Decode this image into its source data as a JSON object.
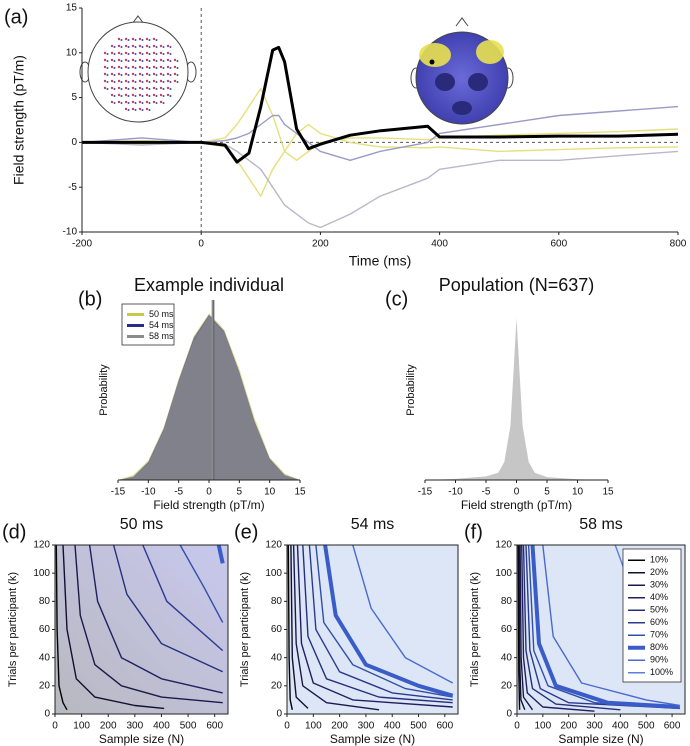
{
  "chart_data": [
    {
      "type": "line",
      "panel_label": "(a)",
      "xlabel": "Time (ms)",
      "ylabel": "Field strength (pT/m)",
      "x": [
        -200,
        -100,
        0,
        40,
        60,
        80,
        100,
        120,
        130,
        140,
        160,
        180,
        200,
        250,
        300,
        380,
        400,
        500,
        600,
        700,
        800
      ],
      "series": [
        {
          "color": "#e6e07a",
          "values": [
            0,
            0.2,
            0,
            0.5,
            2,
            4,
            6,
            3,
            1,
            -1,
            -2,
            -1,
            0,
            0.5,
            0.5,
            0.3,
            0.5,
            0.8,
            1,
            1.2,
            1.5
          ]
        },
        {
          "color": "#e6e07a",
          "values": [
            0,
            -0.2,
            0,
            -0.5,
            -2,
            -4,
            -6,
            -3,
            -2,
            -1,
            1,
            2,
            1,
            0,
            -0.5,
            -0.6,
            -0.5,
            -1,
            -0.8,
            -0.6,
            -0.5
          ]
        },
        {
          "color": "#9a9ac8",
          "values": [
            0,
            0.5,
            0,
            0.2,
            0.5,
            1,
            2,
            3,
            3,
            2,
            1,
            0,
            -1,
            -2,
            -1,
            0,
            1,
            2,
            3,
            3.5,
            4
          ]
        },
        {
          "color": "#b8b8cc",
          "values": [
            0,
            -0.3,
            0,
            -0.2,
            -1,
            -2,
            -3,
            -5,
            -6,
            -7,
            -8,
            -9,
            -9.5,
            -8,
            -6,
            -4,
            -3,
            -2,
            -2,
            -1.5,
            -1
          ]
        },
        {
          "color": "#000000",
          "width": 3,
          "values": [
            0,
            0,
            0,
            -0.3,
            -2.2,
            -1.2,
            4,
            10.3,
            10.6,
            9,
            1.5,
            -0.7,
            -0.2,
            0.8,
            1.3,
            1.8,
            0.6,
            0.6,
            0.7,
            0.7,
            0.9
          ]
        }
      ],
      "xlim": [
        -200,
        800
      ],
      "ylim": [
        -10,
        15
      ],
      "xticks": [
        -200,
        0,
        200,
        400,
        600,
        800
      ],
      "yticks": [
        -10,
        -5,
        0,
        5,
        10,
        15
      ]
    },
    {
      "type": "area",
      "panel_label": "(b)",
      "title": "Example individual",
      "xlabel": "Field strength (pT/m)",
      "ylabel": "Probability",
      "x": [
        -15,
        -12.5,
        -10,
        -7.5,
        -5,
        -2.5,
        0,
        2.5,
        5,
        7.5,
        10,
        12.5,
        15
      ],
      "series": [
        {
          "name": "50 ms",
          "color": "#c8c84a",
          "mean": 0.7,
          "values": [
            0,
            0.003,
            0.012,
            0.032,
            0.062,
            0.088,
            0.102,
            0.092,
            0.068,
            0.038,
            0.014,
            0.004,
            0
          ]
        },
        {
          "name": "54 ms",
          "color": "#2a2a8a",
          "mean": 0.7,
          "values": [
            0,
            0.002,
            0.011,
            0.031,
            0.061,
            0.087,
            0.101,
            0.091,
            0.066,
            0.036,
            0.013,
            0.003,
            0
          ]
        },
        {
          "name": "58 ms",
          "color": "#8c8c8c",
          "mean": 0.6,
          "values": [
            0,
            0.002,
            0.01,
            0.03,
            0.06,
            0.085,
            0.1,
            0.09,
            0.065,
            0.035,
            0.012,
            0.003,
            0
          ]
        }
      ],
      "legend": "upper left",
      "xlim": [
        -15,
        15
      ],
      "ylim": [
        0,
        0.11
      ],
      "xticks": [
        -15,
        -10,
        -5,
        0,
        5,
        10,
        15
      ]
    },
    {
      "type": "area",
      "panel_label": "(c)",
      "title": "Population (N=637)",
      "xlabel": "Field strength (pT/m)",
      "ylabel": "Probability",
      "x": [
        -15,
        -10,
        -5,
        -3,
        -2,
        -1,
        -0.5,
        0,
        0.5,
        1,
        2,
        3,
        5,
        10,
        15
      ],
      "series": [
        {
          "color": "#a0a0a0",
          "values": [
            0,
            0.003,
            0.01,
            0.02,
            0.05,
            0.15,
            0.3,
            0.45,
            0.3,
            0.15,
            0.05,
            0.02,
            0.008,
            0.002,
            0
          ]
        }
      ],
      "xlim": [
        -15,
        15
      ],
      "ylim": [
        0,
        0.5
      ],
      "xticks": [
        -15,
        -10,
        -5,
        0,
        5,
        10,
        15
      ]
    },
    {
      "type": "line",
      "panel_label": "(d)",
      "title": "50 ms",
      "xlabel": "Sample size (N)",
      "ylabel": "Trials per participant (k)",
      "series": [
        {
          "color": "#000000",
          "x": [
            5,
            8,
            15,
            30,
            45
          ],
          "values": [
            120,
            60,
            20,
            8,
            3
          ]
        },
        {
          "color": "#101030",
          "x": [
            30,
            45,
            80,
            150,
            300,
            410
          ],
          "values": [
            120,
            60,
            25,
            12,
            6,
            4
          ]
        },
        {
          "color": "#1a1a4a",
          "x": [
            75,
            95,
            150,
            250,
            400,
            630
          ],
          "values": [
            120,
            70,
            35,
            20,
            12,
            8
          ]
        },
        {
          "color": "#202060",
          "x": [
            130,
            160,
            250,
            400,
            630
          ],
          "values": [
            120,
            80,
            40,
            25,
            15
          ]
        },
        {
          "color": "#25307a",
          "x": [
            220,
            270,
            400,
            630
          ],
          "values": [
            120,
            85,
            50,
            30
          ]
        },
        {
          "color": "#2a3a90",
          "x": [
            330,
            420,
            630
          ],
          "values": [
            120,
            80,
            45
          ]
        },
        {
          "color": "#3050a8",
          "x": [
            470,
            560,
            630
          ],
          "values": [
            120,
            90,
            65
          ]
        },
        {
          "color": "#3a5cc8",
          "width": 4,
          "x": [
            615,
            630
          ],
          "values": [
            120,
            107
          ]
        }
      ],
      "xlim": [
        0,
        650
      ],
      "ylim": [
        0,
        120
      ],
      "xticks": [
        0,
        100,
        200,
        300,
        400,
        500,
        600
      ],
      "yticks": [
        0,
        20,
        40,
        60,
        80,
        100,
        120
      ]
    },
    {
      "type": "line",
      "panel_label": "(e)",
      "title": "54 ms",
      "xlabel": "Sample size (N)",
      "ylabel": "Trials per participant (k)",
      "series": [
        {
          "color": "#000000",
          "x": [
            5,
            8,
            12,
            20
          ],
          "values": [
            120,
            40,
            10,
            3
          ]
        },
        {
          "color": "#101030",
          "x": [
            15,
            20,
            35,
            80
          ],
          "values": [
            120,
            40,
            12,
            4
          ]
        },
        {
          "color": "#1a1a4a",
          "x": [
            25,
            35,
            60,
            150,
            350
          ],
          "values": [
            120,
            50,
            20,
            8,
            3
          ]
        },
        {
          "color": "#202060",
          "x": [
            40,
            55,
            100,
            250,
            630
          ],
          "values": [
            120,
            50,
            22,
            10,
            5
          ]
        },
        {
          "color": "#25307a",
          "x": [
            60,
            80,
            150,
            350,
            630
          ],
          "values": [
            120,
            55,
            25,
            12,
            8
          ]
        },
        {
          "color": "#2a3a90",
          "x": [
            85,
            110,
            200,
            400,
            630
          ],
          "values": [
            120,
            60,
            30,
            15,
            10
          ]
        },
        {
          "color": "#3050a8",
          "x": [
            110,
            140,
            250,
            450,
            630
          ],
          "values": [
            120,
            65,
            35,
            18,
            12
          ]
        },
        {
          "color": "#3a5cc8",
          "width": 4,
          "x": [
            145,
            185,
            300,
            500,
            630
          ],
          "values": [
            120,
            70,
            35,
            20,
            13
          ]
        },
        {
          "color": "#4a6ad0",
          "x": [
            250,
            320,
            450,
            630
          ],
          "values": [
            120,
            75,
            40,
            22
          ]
        }
      ],
      "xlim": [
        0,
        650
      ],
      "ylim": [
        0,
        120
      ],
      "xticks": [
        0,
        100,
        200,
        300,
        400,
        500,
        600
      ],
      "yticks": [
        0,
        20,
        40,
        60,
        80,
        100,
        120
      ]
    },
    {
      "type": "line",
      "panel_label": "(f)",
      "title": "58 ms",
      "xlabel": "Sample size (N)",
      "ylabel": "Trials per participant (k)",
      "series": [
        {
          "name": "10%",
          "color": "#000000",
          "x": [
            5,
            7,
            10
          ],
          "values": [
            120,
            30,
            3
          ]
        },
        {
          "name": "20%",
          "color": "#101030",
          "x": [
            8,
            10,
            15,
            30
          ],
          "values": [
            120,
            40,
            10,
            3
          ]
        },
        {
          "name": "30%",
          "color": "#1a1a4a",
          "x": [
            12,
            16,
            25,
            60
          ],
          "values": [
            120,
            40,
            12,
            3
          ]
        },
        {
          "name": "40%",
          "color": "#202060",
          "x": [
            18,
            25,
            40,
            100,
            300
          ],
          "values": [
            120,
            40,
            15,
            5,
            2
          ]
        },
        {
          "name": "50%",
          "color": "#25307a",
          "x": [
            25,
            35,
            60,
            150,
            400
          ],
          "values": [
            120,
            45,
            18,
            7,
            3
          ]
        },
        {
          "name": "60%",
          "color": "#2a3a90",
          "x": [
            35,
            50,
            90,
            200,
            630
          ],
          "values": [
            120,
            45,
            18,
            8,
            4
          ]
        },
        {
          "name": "70%",
          "color": "#3050a8",
          "x": [
            45,
            65,
            120,
            300,
            630
          ],
          "values": [
            120,
            45,
            20,
            8,
            4
          ]
        },
        {
          "name": "80%",
          "color": "#3a5cc8",
          "width": 4,
          "x": [
            60,
            85,
            150,
            350,
            630
          ],
          "values": [
            120,
            50,
            20,
            8,
            5
          ]
        },
        {
          "name": "90%",
          "color": "#4a6ad0",
          "x": [
            100,
            140,
            250,
            500,
            630
          ],
          "values": [
            120,
            55,
            22,
            10,
            6
          ]
        },
        {
          "name": "100%",
          "color": "#5a80dc",
          "x": [
            380,
            420,
            480,
            560,
            600,
            630
          ],
          "values": [
            120,
            100,
            80,
            60,
            45,
            38
          ]
        }
      ],
      "legend": "upper right",
      "xlim": [
        0,
        650
      ],
      "ylim": [
        0,
        120
      ],
      "xticks": [
        0,
        100,
        200,
        300,
        400,
        500,
        600
      ],
      "yticks": [
        0,
        20,
        40,
        60,
        80,
        100,
        120
      ]
    }
  ]
}
